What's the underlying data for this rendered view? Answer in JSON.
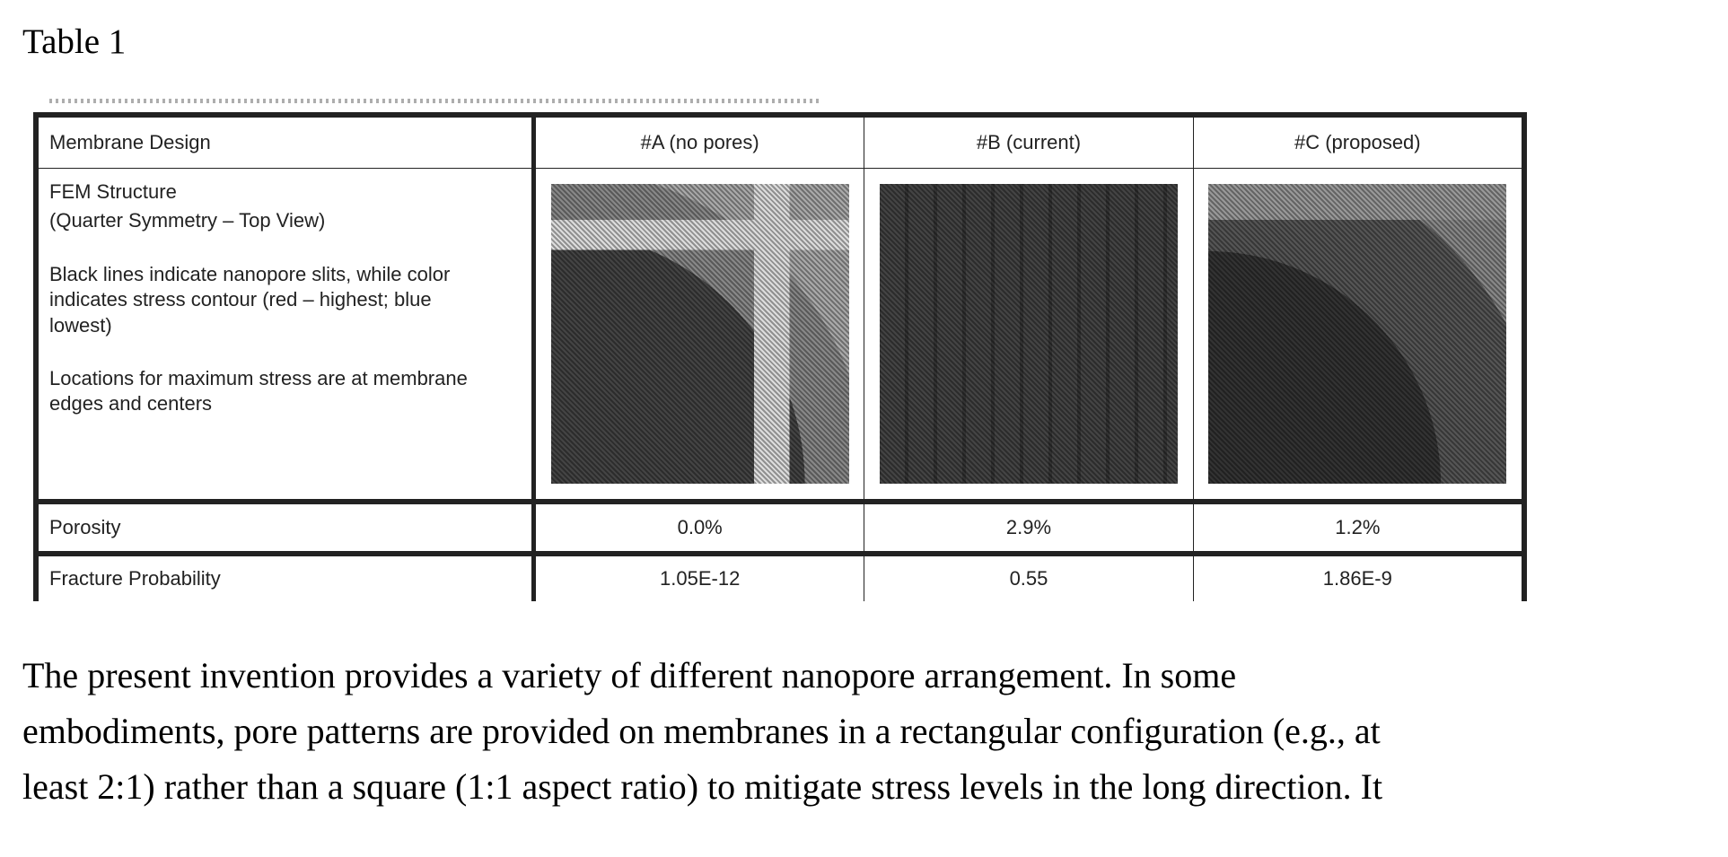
{
  "caption": "Table 1",
  "table": {
    "headers": [
      "Membrane Design",
      "#A (no pores)",
      "#B (current)",
      "#C (proposed)"
    ],
    "fem_row": {
      "title": "FEM Structure",
      "subtitle": "(Quarter Symmetry – Top View)",
      "note1": "Black lines indicate nanopore slits, while color indicates stress contour (red – highest; blue lowest)",
      "note2": "Locations for maximum stress are at membrane edges and centers"
    },
    "porosity": {
      "label": "Porosity",
      "values": [
        "0.0%",
        "2.9%",
        "1.2%"
      ]
    },
    "fracture": {
      "label": "Fracture Probability",
      "values": [
        "1.05E-12",
        "0.55",
        "1.86E-9"
      ]
    }
  },
  "paragraph": [
    "The present invention provides a variety of different nanopore arrangement.  In some",
    "embodiments, pore patterns are provided on membranes in a rectangular configuration (e.g., at",
    "least 2:1) rather than a square (1:1 aspect ratio) to mitigate stress levels in the long direction.  It"
  ]
}
